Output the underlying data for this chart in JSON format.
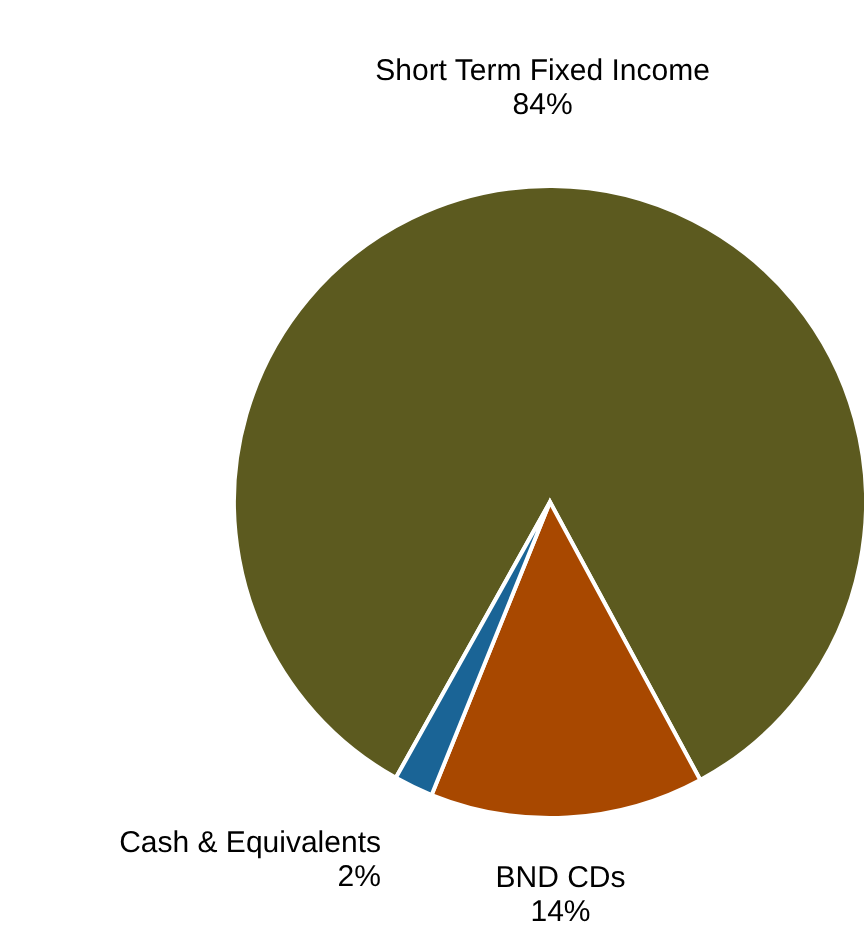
{
  "chart_data": {
    "type": "pie",
    "categories": [
      "Short Term Fixed Income",
      "BND CDs",
      "Cash & Equivalents"
    ],
    "values": [
      84,
      14,
      2
    ],
    "value_labels": [
      "84%",
      "14%",
      "2%"
    ],
    "colors": [
      "#5c5a1f",
      "#a84800",
      "#1a6496"
    ],
    "legend": false
  }
}
